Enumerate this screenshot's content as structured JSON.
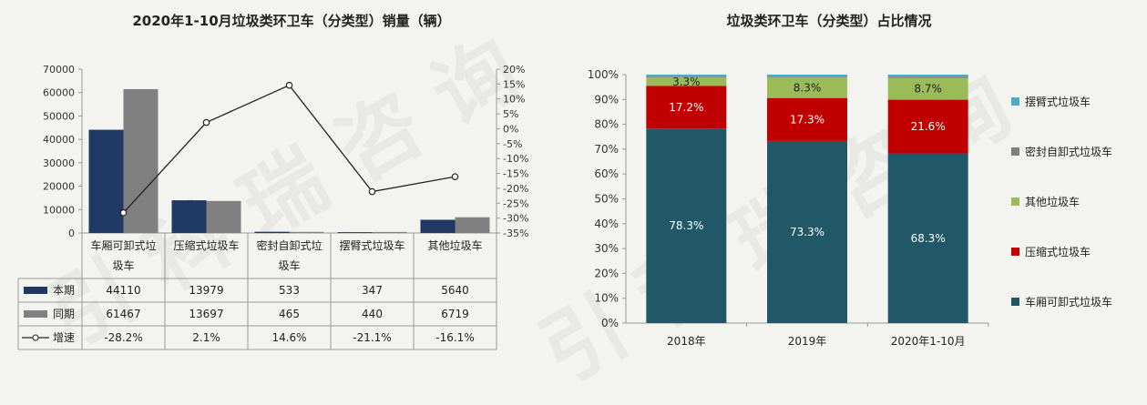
{
  "chart_data": [
    {
      "type": "bar",
      "title": "2020年1-10月垃圾类环卫车（分类型）销量（辆）",
      "categories": [
        [
          "车厢可卸式垃",
          "圾车"
        ],
        [
          "压缩式垃圾车"
        ],
        [
          "密封自卸式垃",
          "圾车"
        ],
        [
          "摆臂式垃圾车"
        ],
        [
          "其他垃圾车"
        ]
      ],
      "series": [
        {
          "name": "本期",
          "type": "bar",
          "color": "#1f3864",
          "values": [
            44110,
            13979,
            533,
            347,
            5640
          ],
          "labels": [
            "44110",
            "13979",
            "533",
            "347",
            "5640"
          ]
        },
        {
          "name": "同期",
          "type": "bar",
          "color": "#808080",
          "values": [
            61467,
            13697,
            465,
            440,
            6719
          ],
          "labels": [
            "61467",
            "13697",
            "465",
            "440",
            "6719"
          ]
        },
        {
          "name": "增速",
          "type": "line",
          "color": "#222222",
          "values": [
            -28.2,
            2.1,
            14.6,
            -21.1,
            -16.1
          ],
          "labels": [
            "-28.2%",
            "2.1%",
            "14.6%",
            "-21.1%",
            "-16.1%"
          ]
        }
      ],
      "ylim": [
        0,
        70000
      ],
      "yticks": [
        "0",
        "10000",
        "20000",
        "30000",
        "40000",
        "50000",
        "60000",
        "70000"
      ],
      "y2lim": [
        -35,
        20
      ],
      "y2ticks": [
        "-35%",
        "-30%",
        "-25%",
        "-20%",
        "-15%",
        "-10%",
        "-5%",
        "0%",
        "5%",
        "10%",
        "15%",
        "20%"
      ]
    },
    {
      "type": "bar",
      "stacked": true,
      "title": "垃圾类环卫车（分类型）占比情况",
      "categories": [
        "2018年",
        "2019年",
        "2020年1-10月"
      ],
      "series": [
        {
          "name": "车厢可卸式垃圾车",
          "color": "#215868",
          "values": [
            78.3,
            73.3,
            68.3
          ],
          "labels": [
            "78.3%",
            "73.3%",
            "68.3%"
          ]
        },
        {
          "name": "压缩式垃圾车",
          "color": "#c00000",
          "values": [
            17.2,
            17.3,
            21.6
          ],
          "labels": [
            "17.2%",
            "17.3%",
            "21.6%"
          ]
        },
        {
          "name": "其他垃圾车",
          "color": "#9bbb59",
          "values": [
            3.3,
            8.3,
            8.7
          ],
          "labels": [
            "3.3%",
            "8.3%",
            "8.7%"
          ]
        },
        {
          "name": "密封自卸式垃圾车",
          "color": "#7f7f7f",
          "values": [
            0.4,
            0.3,
            0.6
          ],
          "labels": []
        },
        {
          "name": "摆臂式垃圾车",
          "color": "#4bacc6",
          "values": [
            0.8,
            0.8,
            0.8
          ],
          "labels": []
        }
      ],
      "ylim": [
        0,
        100
      ],
      "yticks": [
        "0%",
        "10%",
        "20%",
        "30%",
        "40%",
        "50%",
        "60%",
        "70%",
        "80%",
        "90%",
        "100%"
      ],
      "legend_order": [
        4,
        3,
        2,
        1,
        0
      ],
      "legend": "right"
    }
  ]
}
